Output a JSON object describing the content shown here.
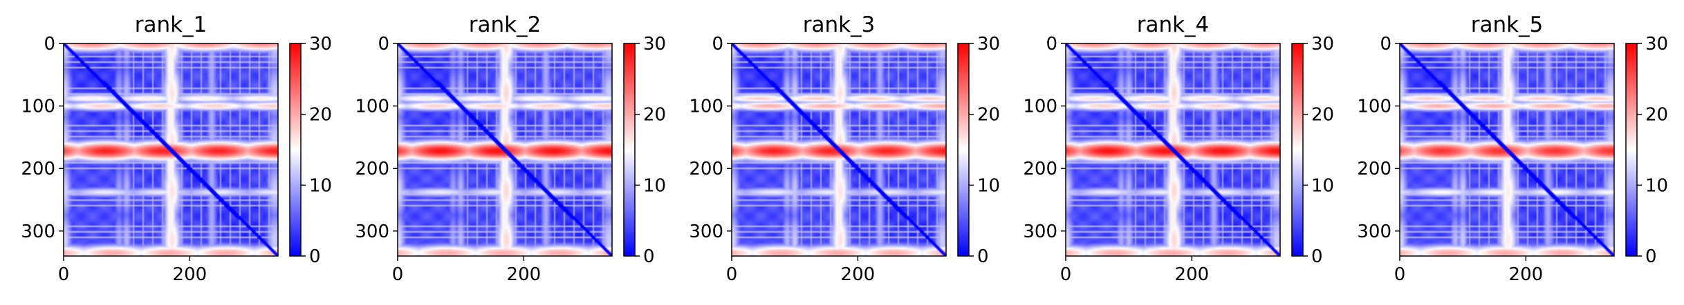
{
  "chart_data": {
    "type": "heatmap",
    "colormap": [
      "#0000ff",
      "#ffffff",
      "#ff0000"
    ],
    "colorbar": {
      "range": [
        0,
        30
      ],
      "ticks": [
        0,
        10,
        20,
        30
      ],
      "tick_labels": [
        "0",
        "10",
        "20",
        "30"
      ]
    },
    "x_range": [
      0,
      340
    ],
    "y_range": [
      0,
      340
    ],
    "y_inverted": true,
    "x_ticks": [
      0,
      200
    ],
    "x_tick_labels": [
      "0",
      "200"
    ],
    "y_ticks": [
      0,
      100,
      200,
      300
    ],
    "y_tick_labels": [
      "0",
      "100",
      "200",
      "300"
    ],
    "panels": [
      {
        "title": "rank_1",
        "hot_rows": [
          [
            0,
            10,
            22
          ],
          [
            88,
            6,
            16
          ],
          [
            100,
            6,
            18
          ],
          [
            172,
            12,
            28
          ],
          [
            238,
            6,
            14
          ],
          [
            335,
            10,
            20
          ]
        ],
        "hot_cols": [
          [
            170,
            8,
            16
          ],
          [
            235,
            6,
            10
          ]
        ]
      },
      {
        "title": "rank_2",
        "hot_rows": [
          [
            0,
            10,
            22
          ],
          [
            88,
            6,
            16
          ],
          [
            100,
            6,
            18
          ],
          [
            172,
            12,
            29
          ],
          [
            238,
            6,
            14
          ],
          [
            335,
            10,
            20
          ]
        ],
        "hot_cols": [
          [
            170,
            8,
            16
          ],
          [
            235,
            6,
            10
          ]
        ]
      },
      {
        "title": "rank_3",
        "hot_rows": [
          [
            0,
            10,
            22
          ],
          [
            88,
            6,
            18
          ],
          [
            100,
            6,
            20
          ],
          [
            172,
            12,
            28
          ],
          [
            238,
            6,
            14
          ],
          [
            335,
            10,
            20
          ]
        ],
        "hot_cols": [
          [
            170,
            8,
            16
          ],
          [
            235,
            6,
            10
          ]
        ]
      },
      {
        "title": "rank_4",
        "hot_rows": [
          [
            0,
            10,
            22
          ],
          [
            88,
            6,
            17
          ],
          [
            100,
            6,
            18
          ],
          [
            172,
            12,
            29
          ],
          [
            238,
            6,
            14
          ],
          [
            335,
            10,
            20
          ]
        ],
        "hot_cols": [
          [
            170,
            8,
            16
          ],
          [
            235,
            6,
            10
          ]
        ]
      },
      {
        "title": "rank_5",
        "hot_rows": [
          [
            0,
            10,
            22
          ],
          [
            88,
            6,
            18
          ],
          [
            100,
            6,
            20
          ],
          [
            172,
            12,
            27
          ],
          [
            238,
            6,
            15
          ],
          [
            335,
            10,
            20
          ]
        ],
        "hot_cols": [
          [
            170,
            8,
            16
          ],
          [
            235,
            6,
            10
          ]
        ]
      }
    ]
  }
}
